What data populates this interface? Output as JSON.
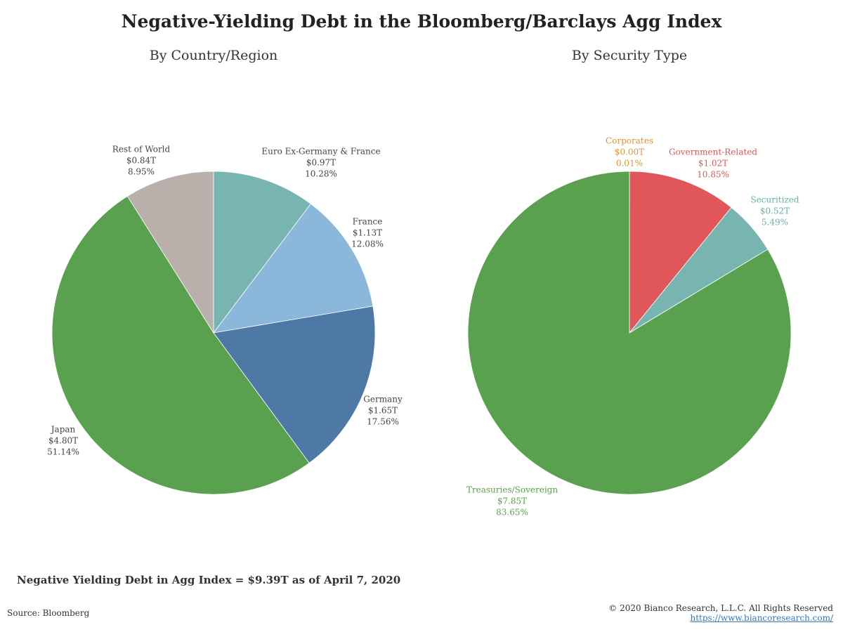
{
  "title": "Negative-Yielding Debt in the Bloomberg/Barclays Agg Index",
  "summary": "Negative Yielding Debt in Agg Index = $9.39T as of April 7, 2020",
  "source": "Source: Bloomberg",
  "copyright": "© 2020 Bianco Research, L.L.C. All Rights Reserved",
  "website": "https://www.biancoresearch.com/",
  "chart_data": [
    {
      "type": "pie",
      "subtitle": "By Country/Region",
      "slices": [
        {
          "name": "Euro Ex-Germany & France",
          "value_label": "$0.97T",
          "pct_label": "10.28%",
          "value": 0.97,
          "pct": 10.28,
          "color": "#78b5b0",
          "label_color": "#444444"
        },
        {
          "name": "France",
          "value_label": "$1.13T",
          "pct_label": "12.08%",
          "value": 1.13,
          "pct": 12.08,
          "color": "#8bb7da",
          "label_color": "#444444"
        },
        {
          "name": "Germany",
          "value_label": "$1.65T",
          "pct_label": "17.56%",
          "value": 1.65,
          "pct": 17.56,
          "color": "#4e78a5",
          "label_color": "#444444"
        },
        {
          "name": "Japan",
          "value_label": "$4.80T",
          "pct_label": "51.14%",
          "value": 4.8,
          "pct": 51.14,
          "color": "#59a14e",
          "label_color": "#444444"
        },
        {
          "name": "Rest of World",
          "value_label": "$0.84T",
          "pct_label": "8.95%",
          "value": 0.84,
          "pct": 8.95,
          "color": "#b9b0ab",
          "label_color": "#444444"
        }
      ]
    },
    {
      "type": "pie",
      "subtitle": "By Security Type",
      "slices": [
        {
          "name": "Corporates",
          "value_label": "$0.00T",
          "pct_label": "0.01%",
          "value": 0.0,
          "pct": 0.01,
          "color": "#f28e2b",
          "label_color": "#e8922f"
        },
        {
          "name": "Government-Related",
          "value_label": "$1.02T",
          "pct_label": "10.85%",
          "value": 1.02,
          "pct": 10.85,
          "color": "#e15759",
          "label_color": "#e05659"
        },
        {
          "name": "Securitized",
          "value_label": "$0.52T",
          "pct_label": "5.49%",
          "value": 0.52,
          "pct": 5.49,
          "color": "#78b5b0",
          "label_color": "#6bb0ab"
        },
        {
          "name": "Treasuries/Sovereign",
          "value_label": "$7.85T",
          "pct_label": "83.65%",
          "value": 7.85,
          "pct": 83.65,
          "color": "#59a14e",
          "label_color": "#59a14e"
        }
      ]
    }
  ]
}
